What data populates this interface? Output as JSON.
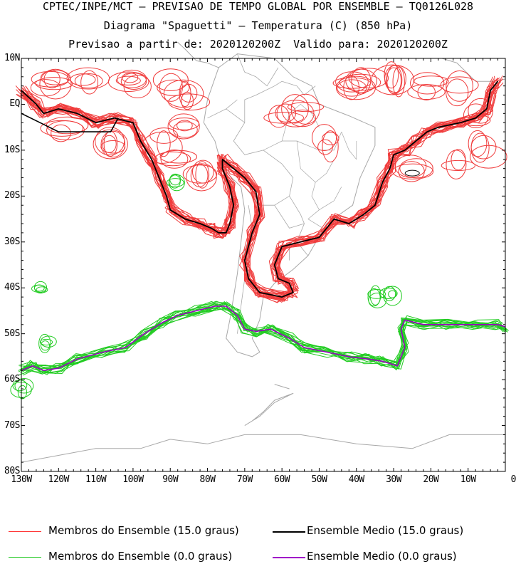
{
  "header": {
    "line1": "CPTEC/INPE/MCT — PREVISAO DE TEMPO GLOBAL POR ENSEMBLE — TQ0126L028",
    "line2": "Diagrama \"Spaguetti\" — Temperatura (C) (850 hPa)",
    "line3": "Previsao a partir de: 2020120200Z  Valido para: 2020120200Z"
  },
  "axes": {
    "lat_labels": [
      "10N",
      "EQ",
      "10S",
      "20S",
      "30S",
      "40S",
      "50S",
      "60S",
      "70S",
      "80S"
    ],
    "lon_labels": [
      "130W",
      "120W",
      "110W",
      "100W",
      "90W",
      "80W",
      "70W",
      "60W",
      "50W",
      "40W",
      "30W",
      "20W",
      "10W",
      "0"
    ]
  },
  "legend": [
    {
      "label": "Membros do Ensemble (15.0 graus)",
      "color": "#ff3030"
    },
    {
      "label": "Ensemble Medio (15.0 graus)",
      "color": "#000000"
    },
    {
      "label": "Membros do Ensemble (0.0 graus)",
      "color": "#20c820"
    },
    {
      "label": "Ensemble Medio (0.0 graus)",
      "color": "#a000c8"
    }
  ],
  "colors": {
    "member15": "#f03c3c",
    "mean15": "#000000",
    "member0": "#22cc22",
    "mean0": "#9a00c0",
    "coast": "#a8a8a8"
  }
}
